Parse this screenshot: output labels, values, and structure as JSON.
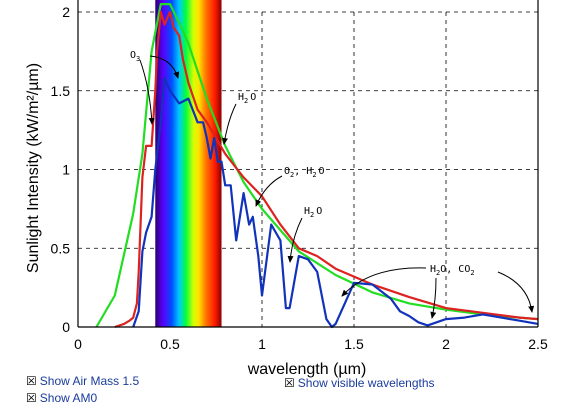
{
  "chart_data": {
    "type": "line",
    "title": "",
    "xlabel": "wavelength (µm)",
    "ylabel": "Sunlight Intensity (kW/m²/µm)",
    "xlim": [
      0,
      2.5
    ],
    "ylim": [
      0,
      2
    ],
    "xticks": [
      "0",
      "0.5",
      "1",
      "1.5",
      "2",
      "2.5"
    ],
    "yticks": [
      "0",
      "0.5",
      "1",
      "1.5",
      "2"
    ],
    "grid": "dashed",
    "visible_band": [
      0.42,
      0.78
    ],
    "series": [
      {
        "color": "#22dd22",
        "x": [
          0.1,
          0.2,
          0.3,
          0.35,
          0.4,
          0.45,
          0.48,
          0.5,
          0.55,
          0.6,
          0.7,
          0.8,
          0.9,
          1.0,
          1.2,
          1.4,
          1.6,
          1.8,
          2.0,
          2.2,
          2.4,
          2.5
        ],
        "values": [
          0.0,
          0.2,
          0.72,
          1.1,
          1.75,
          2.05,
          2.05,
          2.05,
          1.93,
          1.8,
          1.45,
          1.15,
          0.92,
          0.75,
          0.48,
          0.33,
          0.22,
          0.15,
          0.11,
          0.08,
          0.06,
          0.05
        ]
      },
      {
        "color": "#dd2222",
        "x": [
          0.2,
          0.25,
          0.28,
          0.3,
          0.32,
          0.33,
          0.35,
          0.37,
          0.4,
          0.42,
          0.43,
          0.45,
          0.47,
          0.5,
          0.52,
          0.55,
          0.57,
          0.6,
          0.65,
          0.7,
          0.75,
          0.8,
          0.9,
          1.0,
          1.1,
          1.2,
          1.3,
          1.4,
          1.6,
          1.8,
          2.0,
          2.2,
          2.4,
          2.5
        ],
        "values": [
          0.0,
          0.02,
          0.04,
          0.06,
          0.15,
          0.35,
          0.95,
          1.15,
          1.15,
          1.5,
          1.75,
          2.0,
          1.92,
          2.0,
          1.9,
          1.85,
          1.7,
          1.55,
          1.38,
          1.3,
          1.2,
          1.1,
          0.95,
          0.83,
          0.65,
          0.5,
          0.45,
          0.37,
          0.27,
          0.19,
          0.12,
          0.09,
          0.06,
          0.05
        ]
      },
      {
        "color": "#1133bb",
        "x": [
          0.3,
          0.33,
          0.35,
          0.37,
          0.4,
          0.42,
          0.45,
          0.47,
          0.5,
          0.55,
          0.6,
          0.65,
          0.68,
          0.7,
          0.72,
          0.74,
          0.76,
          0.78,
          0.8,
          0.83,
          0.86,
          0.9,
          0.93,
          0.95,
          0.98,
          1.0,
          1.05,
          1.1,
          1.13,
          1.15,
          1.2,
          1.25,
          1.3,
          1.35,
          1.38,
          1.4,
          1.45,
          1.5,
          1.6,
          1.7,
          1.75,
          1.8,
          1.85,
          1.9,
          2.0,
          2.1,
          2.2,
          2.3,
          2.4,
          2.5
        ],
        "values": [
          0.0,
          0.1,
          0.48,
          0.6,
          0.7,
          1.0,
          1.3,
          1.58,
          1.5,
          1.42,
          1.45,
          1.3,
          1.3,
          1.2,
          1.07,
          1.2,
          1.05,
          1.05,
          0.9,
          0.9,
          0.55,
          0.85,
          0.65,
          0.7,
          0.45,
          0.2,
          0.65,
          0.55,
          0.12,
          0.12,
          0.45,
          0.43,
          0.35,
          0.05,
          0.0,
          0.02,
          0.15,
          0.28,
          0.27,
          0.18,
          0.1,
          0.07,
          0.03,
          0.01,
          0.05,
          0.06,
          0.08,
          0.06,
          0.04,
          0.02
        ]
      }
    ]
  },
  "annotations": {
    "o3": "O",
    "o3_sub": "3",
    "h2o_1": "H",
    "h2o_1_sub": "2",
    "h2o_1_tail": "O",
    "o2h2o": "O",
    "o2h2o_sub": "2",
    "o2h2o_mid": ", H",
    "o2h2o_sub2": "2",
    "o2h2o_tail": "O",
    "h2o_2": "H",
    "h2o_2_sub": "2",
    "h2o_2_tail": "O",
    "h2oco2": "H",
    "h2oco2_sub": "2",
    "h2oco2_mid": "O, CO",
    "h2oco2_sub2": "2"
  },
  "options": {
    "air_mass": "Show Air Mass 1.5",
    "am0": "Show AM0",
    "visible": "Show visible wavelengths",
    "checkbox_glyph": "☒"
  }
}
